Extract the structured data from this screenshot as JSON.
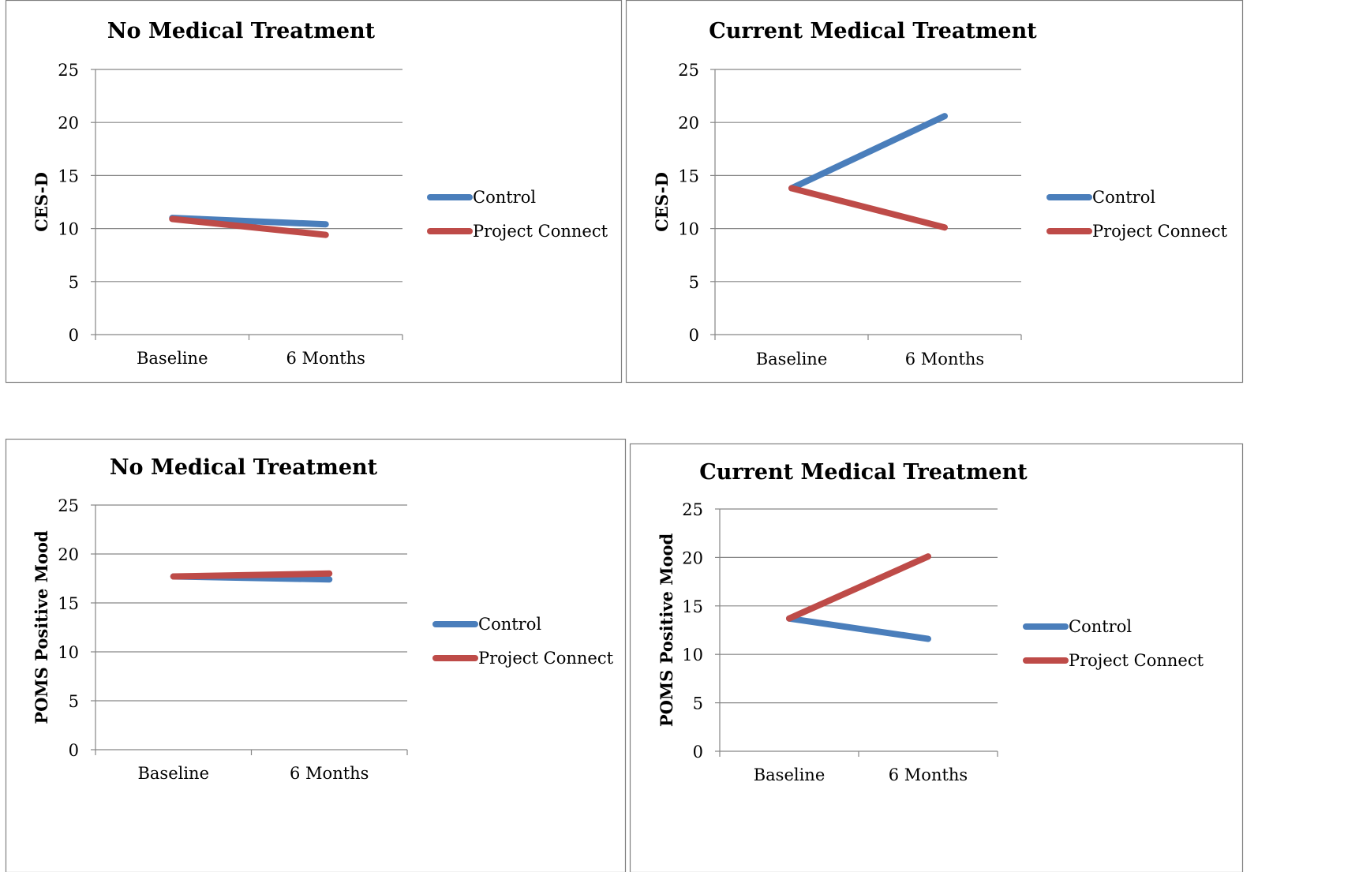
{
  "chart_data": [
    {
      "type": "line",
      "title": "No Medical Treatment",
      "xlabel": "",
      "ylabel": "CES-D",
      "categories": [
        "Baseline",
        "6 Months"
      ],
      "ylim": [
        0,
        25
      ],
      "yticks": [
        0,
        5,
        10,
        15,
        20,
        25
      ],
      "grid": true,
      "legend_position": "right",
      "series": [
        {
          "name": "Control",
          "color": "#4A7EBB",
          "values": [
            11.0,
            10.4
          ]
        },
        {
          "name": "Project Connect",
          "color": "#BE4B48",
          "values": [
            10.9,
            9.4
          ]
        }
      ]
    },
    {
      "type": "line",
      "title": "Current Medical Treatment",
      "xlabel": "",
      "ylabel": "CES-D",
      "categories": [
        "Baseline",
        "6 Months"
      ],
      "ylim": [
        0,
        25
      ],
      "yticks": [
        0,
        5,
        10,
        15,
        20,
        25
      ],
      "grid": true,
      "legend_position": "right",
      "series": [
        {
          "name": "Control",
          "color": "#4A7EBB",
          "values": [
            13.8,
            20.6
          ]
        },
        {
          "name": "Project Connect",
          "color": "#BE4B48",
          "values": [
            13.8,
            10.1
          ]
        }
      ]
    },
    {
      "type": "line",
      "title": "No Medical Treatment",
      "xlabel": "",
      "ylabel": "POMS Positive Mood",
      "categories": [
        "Baseline",
        "6 Months"
      ],
      "ylim": [
        0,
        25
      ],
      "yticks": [
        0,
        5,
        10,
        15,
        20,
        25
      ],
      "grid": true,
      "legend_position": "right",
      "series": [
        {
          "name": "Control",
          "color": "#4A7EBB",
          "values": [
            17.7,
            17.4
          ]
        },
        {
          "name": "Project Connect",
          "color": "#BE4B48",
          "values": [
            17.7,
            18.0
          ]
        }
      ]
    },
    {
      "type": "line",
      "title": "Current Medical Treatment",
      "xlabel": "",
      "ylabel": "POMS Positive Mood",
      "categories": [
        "Baseline",
        "6 Months"
      ],
      "ylim": [
        0,
        25
      ],
      "yticks": [
        0,
        5,
        10,
        15,
        20,
        25
      ],
      "grid": true,
      "legend_position": "right",
      "series": [
        {
          "name": "Control",
          "color": "#4A7EBB",
          "values": [
            13.7,
            11.6
          ]
        },
        {
          "name": "Project Connect",
          "color": "#BE4B48",
          "values": [
            13.7,
            20.1
          ]
        }
      ]
    }
  ]
}
